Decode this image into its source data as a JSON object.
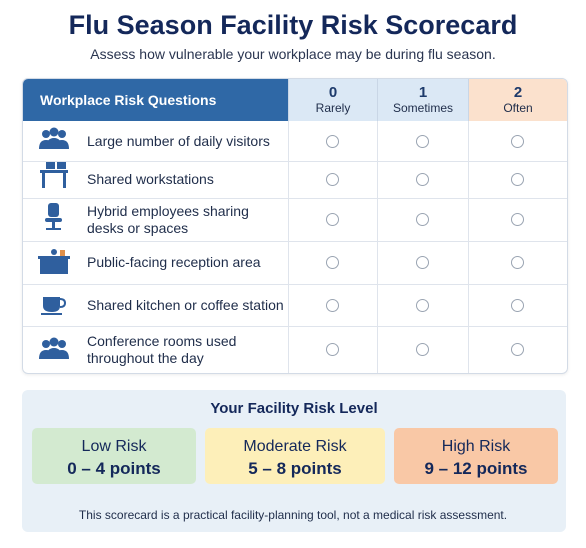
{
  "title": "Flu Season Facility Risk Scorecard",
  "subtitle": "Assess how vulnerable your workplace may be during flu season.",
  "table": {
    "question_header": "Workplace Risk Questions",
    "columns": [
      {
        "score": 0,
        "label": "Rarely"
      },
      {
        "score": 1,
        "label": "Sometimes"
      },
      {
        "score": 2,
        "label": "Often"
      }
    ],
    "rows": [
      [
        "Large number of daily visitors"
      ],
      [
        "Shared workstations"
      ],
      [
        "Hybrid employees sharing",
        "desks or spaces"
      ],
      [
        "Public-facing reception area"
      ],
      [
        "Shared kitchen or coffee station"
      ],
      [
        "Conference rooms used",
        "throughout the day"
      ]
    ]
  },
  "risk_level": {
    "title": "Your Facility Risk Level",
    "levels": [
      {
        "name": "Low Risk",
        "range": "0 – 4 points"
      },
      {
        "name": "Moderate Risk",
        "range": "5 – 8 points"
      },
      {
        "name": "High Risk",
        "range": "9 – 12 points"
      }
    ]
  },
  "footer": "This scorecard is a practical facility-planning tool, not a medical risk assessment."
}
